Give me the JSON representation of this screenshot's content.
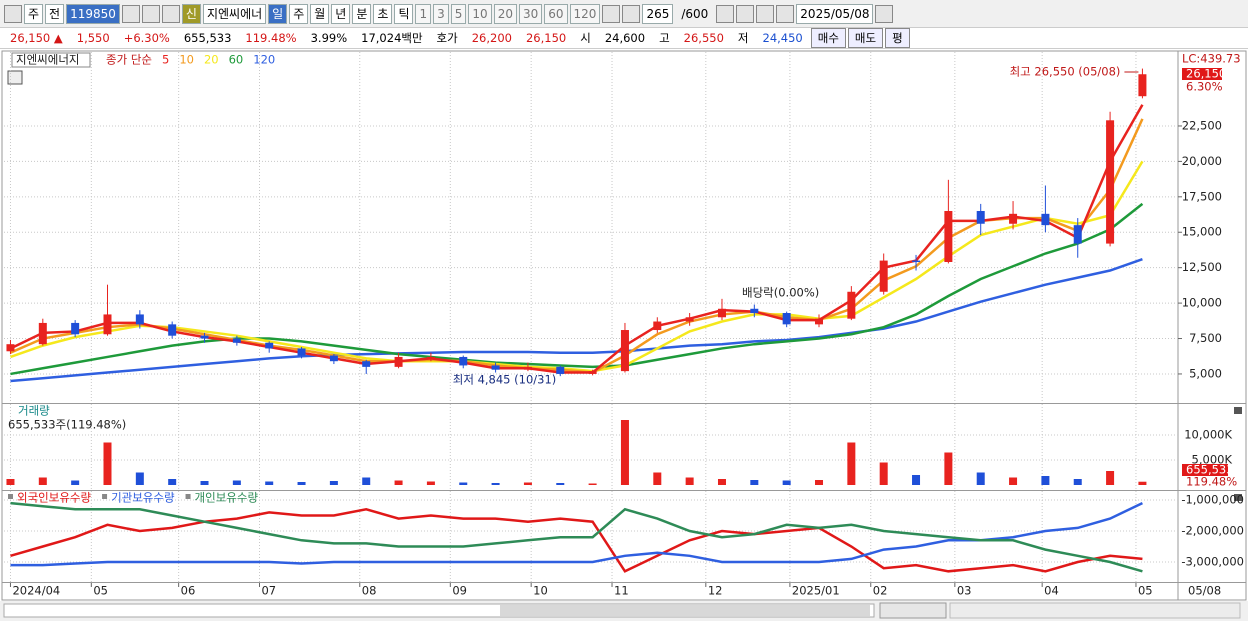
{
  "toolbar": {
    "items": [
      "주",
      "전",
      "119850",
      "신",
      "지엔씨에너",
      "일",
      "주",
      "월",
      "년",
      "분",
      "초",
      "틱",
      "1",
      "3",
      "5",
      "10",
      "20",
      "30",
      "60",
      "120",
      "265",
      "/600",
      "2025/05/08"
    ]
  },
  "info_bar": {
    "items": [
      "26,150 ▲",
      "1,550",
      "+6.30%",
      "655,533",
      "119.48%",
      "3.99%",
      "17,024백만",
      "호가",
      "26,200",
      "26,150",
      "시",
      "24,600",
      "고",
      "26,550",
      "저",
      "24,450",
      "매수",
      "매도",
      "평"
    ]
  },
  "chart_data": [
    {
      "type": "candlestick",
      "stock_name": "지엔씨에너지",
      "ma_label": "종가 단순",
      "up_color": "#e8231f",
      "down_color": "#1f4fd8",
      "open": [
        6600,
        7100,
        8600,
        7800,
        9200,
        8500,
        7700,
        7500,
        7200,
        6800,
        6300,
        5900,
        5500,
        6200,
        6200,
        5600,
        5300,
        5500,
        5000,
        5200,
        8100,
        8700,
        9000,
        9600,
        9300,
        8500,
        8900,
        10800,
        13000,
        12900,
        16500,
        15600,
        16300,
        15500,
        14200,
        24600
      ],
      "high": [
        7400,
        8900,
        8800,
        11300,
        9500,
        8700,
        7900,
        7700,
        7300,
        6900,
        6400,
        6000,
        6500,
        6500,
        6300,
        5800,
        5800,
        5600,
        5300,
        8600,
        9000,
        9300,
        10300,
        9900,
        9400,
        9200,
        11200,
        13500,
        13400,
        18700,
        17000,
        17200,
        18300,
        16000,
        23500,
        26550
      ],
      "low": [
        6400,
        7000,
        7600,
        7700,
        8200,
        7500,
        7200,
        7000,
        6500,
        6100,
        5700,
        5000,
        5400,
        5900,
        5400,
        5100,
        5200,
        4845,
        4900,
        5100,
        7900,
        8400,
        8800,
        9000,
        8300,
        8300,
        8800,
        10600,
        12300,
        12800,
        14800,
        15200,
        15000,
        13200,
        14000,
        24450
      ],
      "close": [
        7100,
        8600,
        7800,
        9200,
        8500,
        7700,
        7500,
        7200,
        6800,
        6300,
        5900,
        5500,
        6200,
        6200,
        5600,
        5300,
        5500,
        5000,
        5200,
        8100,
        8700,
        9000,
        9600,
        9300,
        8500,
        8900,
        10800,
        13000,
        12900,
        16500,
        15600,
        16300,
        15500,
        14200,
        22900,
        26150
      ],
      "ma_series": [
        {
          "name": "5",
          "color": "#e8231f",
          "values": [
            6800,
            7900,
            8000,
            8600,
            8600,
            8000,
            7600,
            7300,
            6900,
            6500,
            6100,
            5700,
            5900,
            6100,
            5800,
            5400,
            5400,
            5100,
            5100,
            7000,
            8400,
            8900,
            9500,
            9400,
            8800,
            8800,
            10200,
            12500,
            13000,
            15800,
            15800,
            16100,
            15800,
            14600,
            20000,
            24000
          ]
        },
        {
          "name": "10",
          "color": "#f39a1e",
          "values": [
            6500,
            7500,
            7900,
            8300,
            8500,
            8200,
            7800,
            7400,
            7000,
            6700,
            6300,
            5900,
            5900,
            6000,
            5900,
            5600,
            5400,
            5300,
            5100,
            6300,
            7800,
            8700,
            9200,
            9400,
            9000,
            8800,
            9600,
            11600,
            12600,
            14600,
            15800,
            16000,
            16000,
            15100,
            18000,
            23000
          ]
        },
        {
          "name": "20",
          "color": "#f5e81c",
          "values": [
            6200,
            7000,
            7600,
            8000,
            8400,
            8300,
            8000,
            7700,
            7300,
            6900,
            6500,
            6100,
            5900,
            5900,
            5900,
            5700,
            5500,
            5400,
            5200,
            5600,
            6800,
            8000,
            8700,
            9200,
            9200,
            8900,
            9100,
            10400,
            11700,
            13300,
            14800,
            15400,
            16000,
            15600,
            16200,
            20000
          ]
        },
        {
          "name": "60",
          "color": "#1e9a3a",
          "values": [
            5000,
            5400,
            5800,
            6200,
            6600,
            7000,
            7300,
            7500,
            7500,
            7300,
            7000,
            6700,
            6400,
            6200,
            6000,
            5800,
            5700,
            5600,
            5500,
            5600,
            6000,
            6400,
            6800,
            7100,
            7300,
            7500,
            7800,
            8300,
            9200,
            10500,
            11700,
            12600,
            13500,
            14200,
            15200,
            17000
          ]
        },
        {
          "name": "120",
          "color": "#2f5fe0",
          "values": [
            4500,
            4700,
            4900,
            5100,
            5300,
            5500,
            5700,
            5900,
            6100,
            6250,
            6350,
            6400,
            6450,
            6500,
            6550,
            6550,
            6550,
            6500,
            6500,
            6600,
            6800,
            7000,
            7100,
            7300,
            7400,
            7600,
            7900,
            8200,
            8700,
            9400,
            10100,
            10700,
            11300,
            11800,
            12300,
            13100
          ]
        }
      ],
      "ylim": [
        2950,
        27720
      ],
      "yticks": [
        {
          "value": 5000,
          "label": "5,000"
        },
        {
          "value": 7500,
          "label": "7,500"
        },
        {
          "value": 10000,
          "label": "10,000"
        },
        {
          "value": 12500,
          "label": "12,500"
        },
        {
          "value": 15000,
          "label": "15,000"
        },
        {
          "value": 17500,
          "label": "17,500"
        },
        {
          "value": 20000,
          "label": "20,000"
        },
        {
          "value": 22500,
          "label": "22,500"
        }
      ],
      "grid": true,
      "lc_label": "LC:439.73",
      "price_label": "26,150",
      "change_label": "6.30%",
      "annotations": {
        "high": "최고 26,550 (05/08)",
        "low": "최저 4,845 (10/31)",
        "dividend": "배당락(0.00%)"
      }
    },
    {
      "type": "bar",
      "title": "거래량",
      "subtitle": "655,533주(119.48%)",
      "values": [
        1200000,
        1500000,
        900000,
        8500000,
        2500000,
        1200000,
        800000,
        900000,
        700000,
        600000,
        800000,
        1500000,
        900000,
        700000,
        500000,
        400000,
        500000,
        400000,
        300000,
        13000000,
        2500000,
        1500000,
        1200000,
        1000000,
        900000,
        1000000,
        8500000,
        4500000,
        2000000,
        6500000,
        2500000,
        1500000,
        1800000,
        1200000,
        2800000,
        655533
      ],
      "ylim": [
        0,
        16200000
      ],
      "yticks": [
        {
          "value": 5000000,
          "label": "5,000K"
        },
        {
          "value": 10000000,
          "label": "10,000K"
        }
      ],
      "last_label": "655,533",
      "ratio_label": "119.48%"
    },
    {
      "type": "line",
      "series": [
        {
          "name": "외국인보유수량",
          "color": "#e01818",
          "values": [
            -2800000,
            -2500000,
            -2200000,
            -1800000,
            -2000000,
            -1900000,
            -1700000,
            -1600000,
            -1400000,
            -1500000,
            -1500000,
            -1300000,
            -1600000,
            -1500000,
            -1600000,
            -1600000,
            -1700000,
            -1600000,
            -1700000,
            -3300000,
            -2800000,
            -2300000,
            -2000000,
            -2100000,
            -2000000,
            -1900000,
            -2500000,
            -3200000,
            -3100000,
            -3300000,
            -3200000,
            -3100000,
            -3300000,
            -3000000,
            -2800000,
            -2900000
          ]
        },
        {
          "name": "기관보유수량",
          "color": "#2f5fe0",
          "values": [
            -3100000,
            -3100000,
            -3050000,
            -3000000,
            -3000000,
            -3000000,
            -3000000,
            -3000000,
            -3000000,
            -3050000,
            -3000000,
            -3000000,
            -3000000,
            -3000000,
            -3000000,
            -3000000,
            -3000000,
            -3000000,
            -3000000,
            -2800000,
            -2700000,
            -2800000,
            -3000000,
            -3000000,
            -3000000,
            -3000000,
            -2900000,
            -2600000,
            -2500000,
            -2300000,
            -2300000,
            -2200000,
            -2000000,
            -1900000,
            -1600000,
            -1100000
          ]
        },
        {
          "name": "개인보유수량",
          "color": "#2e8b57",
          "values": [
            -1100000,
            -1200000,
            -1300000,
            -1300000,
            -1300000,
            -1500000,
            -1700000,
            -1900000,
            -2100000,
            -2300000,
            -2400000,
            -2400000,
            -2500000,
            -2500000,
            -2500000,
            -2400000,
            -2300000,
            -2200000,
            -2200000,
            -1300000,
            -1600000,
            -2000000,
            -2200000,
            -2100000,
            -1800000,
            -1900000,
            -1800000,
            -2000000,
            -2100000,
            -2200000,
            -2300000,
            -2300000,
            -2600000,
            -2800000,
            -3000000,
            -3300000
          ]
        }
      ],
      "ylim": [
        -3645000,
        -742000
      ],
      "yticks": [
        {
          "value": -3000000,
          "label": "-3,000,000"
        },
        {
          "value": -2000000,
          "label": "-2,000,000"
        },
        {
          "value": -1000000,
          "label": "-1,000,000"
        }
      ],
      "xlim": [
        -0.2,
        36.1
      ],
      "xticks": [
        {
          "value": 0,
          "label": "2024/04"
        },
        {
          "value": 2.5,
          "label": "05"
        },
        {
          "value": 5.2,
          "label": "06"
        },
        {
          "value": 7.7,
          "label": "07"
        },
        {
          "value": 10.8,
          "label": "08"
        },
        {
          "value": 13.6,
          "label": "09"
        },
        {
          "value": 16.1,
          "label": "10"
        },
        {
          "value": 18.6,
          "label": "11"
        },
        {
          "value": 21.5,
          "label": "12"
        },
        {
          "value": 24.1,
          "label": "2025/01"
        },
        {
          "value": 26.6,
          "label": "02"
        },
        {
          "value": 29.2,
          "label": "03"
        },
        {
          "value": 31.9,
          "label": "04"
        },
        {
          "value": 34.8,
          "label": "05"
        }
      ],
      "x_end_label": "05/08"
    }
  ]
}
